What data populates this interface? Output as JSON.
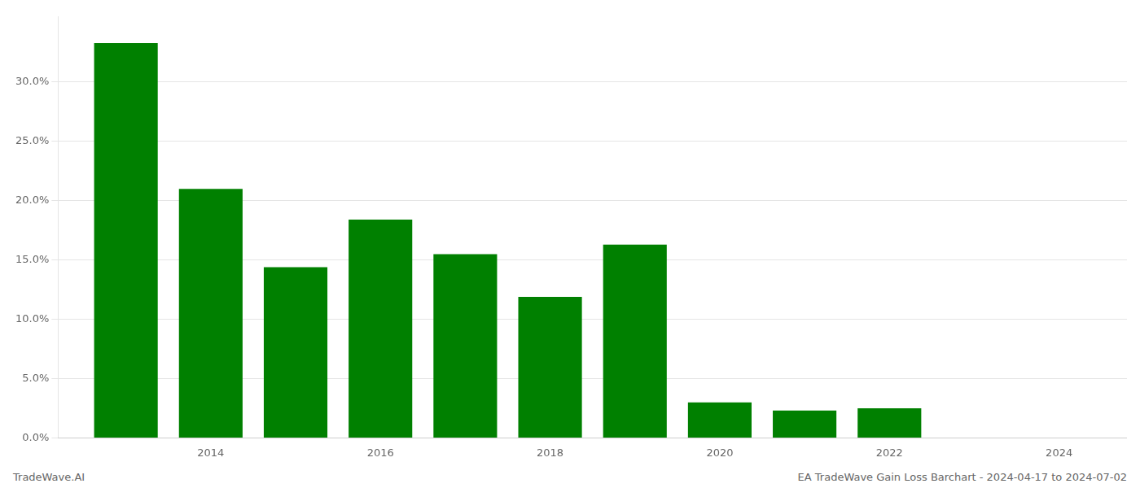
{
  "chart_data": {
    "type": "bar",
    "x": [
      2013,
      2014,
      2015,
      2016,
      2017,
      2018,
      2019,
      2020,
      2021,
      2022,
      2023
    ],
    "values": [
      0.333,
      0.21,
      0.144,
      0.184,
      0.155,
      0.119,
      0.163,
      0.03,
      0.023,
      0.025,
      0.0
    ],
    "color": "#008000",
    "xlim": [
      2012.2,
      2024.8
    ],
    "xticks": [
      2014,
      2016,
      2018,
      2020,
      2022,
      2024
    ],
    "ylim": [
      0,
      0.355
    ],
    "yticks": [
      {
        "value": 0.0,
        "label": "0.0%"
      },
      {
        "value": 0.05,
        "label": "5.0%"
      },
      {
        "value": 0.1,
        "label": "10.0%"
      },
      {
        "value": 0.15,
        "label": "15.0%"
      },
      {
        "value": 0.2,
        "label": "20.0%"
      },
      {
        "value": 0.25,
        "label": "25.0%"
      },
      {
        "value": 0.3,
        "label": "30.0%"
      }
    ],
    "grid": true,
    "annotations": [
      "TradeWave.AI",
      "EA TradeWave Gain Loss Barchart - 2024-04-17 to 2024-07-02"
    ]
  }
}
